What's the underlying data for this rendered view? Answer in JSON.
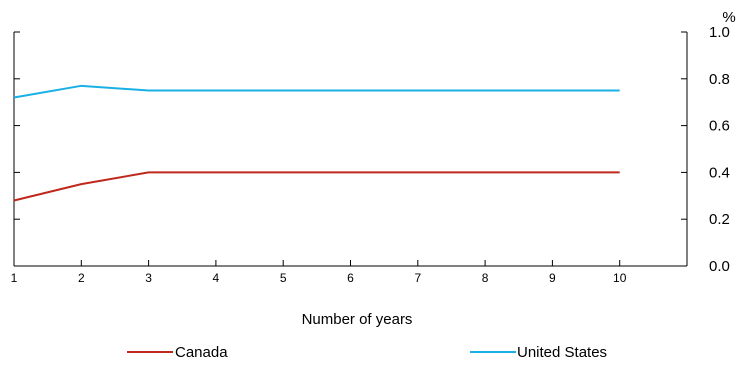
{
  "chart_data": {
    "type": "line",
    "title": "",
    "xlabel": "Number of years",
    "ylabel": "%",
    "x": [
      1,
      2,
      3,
      4,
      5,
      6,
      7,
      8,
      9,
      10
    ],
    "x_ticks": [
      "1",
      "2",
      "3",
      "4",
      "5",
      "6",
      "7",
      "8",
      "9",
      "10"
    ],
    "xlim": [
      1,
      11
    ],
    "ylim": [
      0,
      1.0
    ],
    "y_ticks": [
      "0.0",
      "0.2",
      "0.4",
      "0.6",
      "0.8",
      "1.0"
    ],
    "y_axis_side": "right",
    "grid": false,
    "legend_position": "bottom",
    "series": [
      {
        "name": "Canada",
        "color": "#c0281c",
        "values": [
          0.28,
          0.35,
          0.4,
          0.4,
          0.4,
          0.4,
          0.4,
          0.4,
          0.4,
          0.4
        ]
      },
      {
        "name": "United States",
        "color": "#1ab0e6",
        "values": [
          0.72,
          0.77,
          0.75,
          0.75,
          0.75,
          0.75,
          0.75,
          0.75,
          0.75,
          0.75
        ]
      }
    ]
  }
}
